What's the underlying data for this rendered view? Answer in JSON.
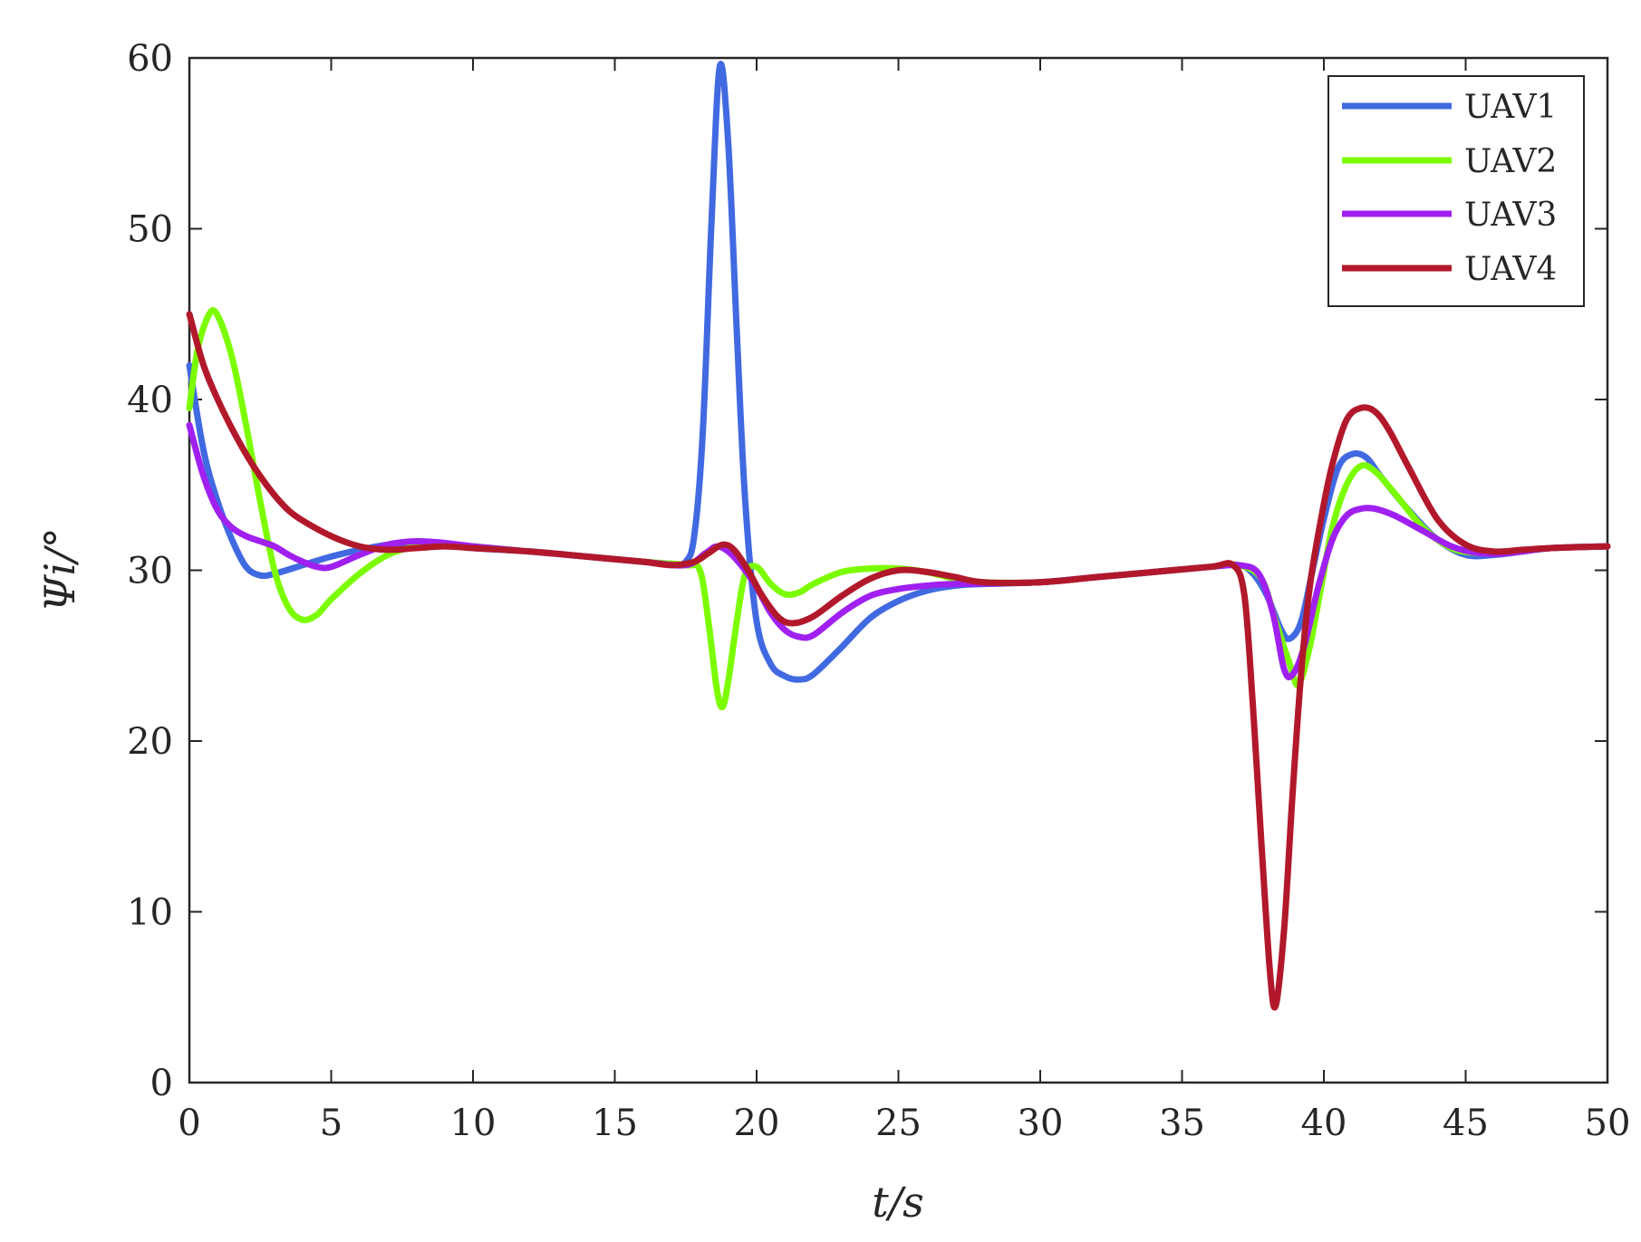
{
  "chart_data": {
    "type": "line",
    "title": "",
    "xlabel": "t/s",
    "ylabel": "Ψi/°",
    "xlim": [
      0,
      50
    ],
    "ylim": [
      0,
      60
    ],
    "xticks": [
      "0",
      "5",
      "10",
      "15",
      "20",
      "25",
      "30",
      "35",
      "40",
      "45",
      "50"
    ],
    "yticks": [
      "0",
      "10",
      "20",
      "30",
      "40",
      "50",
      "60"
    ],
    "grid": false,
    "legend_position": "top-right",
    "series": [
      {
        "name": "UAV1",
        "color": "#4169E1",
        "points": [
          [
            0,
            42
          ],
          [
            0.5,
            37
          ],
          [
            1,
            34
          ],
          [
            1.5,
            31.8
          ],
          [
            2,
            30.2
          ],
          [
            2.5,
            29.7
          ],
          [
            3,
            29.8
          ],
          [
            4,
            30.3
          ],
          [
            5,
            30.8
          ],
          [
            6,
            31.2
          ],
          [
            7,
            31.5
          ],
          [
            8,
            31.6
          ],
          [
            9,
            31.5
          ],
          [
            10,
            31.3
          ],
          [
            12,
            31.1
          ],
          [
            14,
            30.8
          ],
          [
            16,
            30.5
          ],
          [
            17,
            30.3
          ],
          [
            17.5,
            30.5
          ],
          [
            17.8,
            32
          ],
          [
            18.1,
            38
          ],
          [
            18.4,
            50
          ],
          [
            18.7,
            59.5
          ],
          [
            19,
            55
          ],
          [
            19.3,
            44
          ],
          [
            19.6,
            34
          ],
          [
            20,
            27
          ],
          [
            20.5,
            24.5
          ],
          [
            21,
            23.8
          ],
          [
            21.5,
            23.6
          ],
          [
            22,
            23.9
          ],
          [
            23,
            25.5
          ],
          [
            24,
            27.2
          ],
          [
            25,
            28.2
          ],
          [
            26,
            28.8
          ],
          [
            27,
            29.1
          ],
          [
            28,
            29.2
          ],
          [
            30,
            29.3
          ],
          [
            32,
            29.6
          ],
          [
            34,
            29.9
          ],
          [
            36,
            30.2
          ],
          [
            37,
            30.3
          ],
          [
            37.5,
            29.8
          ],
          [
            38,
            28.5
          ],
          [
            38.5,
            26.5
          ],
          [
            38.8,
            26
          ],
          [
            39.2,
            27
          ],
          [
            39.6,
            30
          ],
          [
            40,
            33
          ],
          [
            40.5,
            36
          ],
          [
            41,
            36.8
          ],
          [
            41.5,
            36.6
          ],
          [
            42,
            35.5
          ],
          [
            43,
            33.5
          ],
          [
            44,
            31.8
          ],
          [
            45,
            30.9
          ],
          [
            46,
            30.9
          ],
          [
            47,
            31.1
          ],
          [
            48,
            31.3
          ],
          [
            50,
            31.4
          ]
        ]
      },
      {
        "name": "UAV2",
        "color": "#7CFC00",
        "points": [
          [
            0,
            39.5
          ],
          [
            0.3,
            43
          ],
          [
            0.7,
            45
          ],
          [
            1,
            44.9
          ],
          [
            1.5,
            42.5
          ],
          [
            2,
            38.5
          ],
          [
            2.5,
            34
          ],
          [
            3,
            30
          ],
          [
            3.5,
            27.8
          ],
          [
            4,
            27.1
          ],
          [
            4.5,
            27.4
          ],
          [
            5,
            28.3
          ],
          [
            6,
            29.8
          ],
          [
            7,
            30.9
          ],
          [
            8,
            31.4
          ],
          [
            9,
            31.5
          ],
          [
            10,
            31.4
          ],
          [
            12,
            31.1
          ],
          [
            14,
            30.8
          ],
          [
            16,
            30.5
          ],
          [
            17.5,
            30.3
          ],
          [
            18,
            30
          ],
          [
            18.3,
            27
          ],
          [
            18.6,
            23
          ],
          [
            18.8,
            22
          ],
          [
            19,
            23.5
          ],
          [
            19.3,
            27
          ],
          [
            19.6,
            29.8
          ],
          [
            20,
            30.2
          ],
          [
            20.5,
            29.2
          ],
          [
            21,
            28.6
          ],
          [
            21.5,
            28.7
          ],
          [
            22,
            29.2
          ],
          [
            23,
            29.9
          ],
          [
            24,
            30.1
          ],
          [
            25,
            30.1
          ],
          [
            26,
            29.9
          ],
          [
            27,
            29.5
          ],
          [
            28,
            29.3
          ],
          [
            30,
            29.3
          ],
          [
            32,
            29.6
          ],
          [
            34,
            29.9
          ],
          [
            36,
            30.2
          ],
          [
            37,
            30.3
          ],
          [
            37.8,
            29.5
          ],
          [
            38.3,
            27
          ],
          [
            38.8,
            24.5
          ],
          [
            39.1,
            23.3
          ],
          [
            39.5,
            25.5
          ],
          [
            39.9,
            29
          ],
          [
            40.3,
            32.5
          ],
          [
            40.8,
            35
          ],
          [
            41.3,
            36.1
          ],
          [
            41.8,
            35.8
          ],
          [
            42.5,
            34.5
          ],
          [
            43.5,
            32.5
          ],
          [
            44.5,
            31.3
          ],
          [
            45.5,
            31
          ],
          [
            46.5,
            31
          ],
          [
            48,
            31.3
          ],
          [
            50,
            31.4
          ]
        ]
      },
      {
        "name": "UAV3",
        "color": "#A020F0",
        "points": [
          [
            0,
            38.5
          ],
          [
            0.5,
            35.5
          ],
          [
            1,
            33.5
          ],
          [
            1.5,
            32.5
          ],
          [
            2,
            32
          ],
          [
            2.5,
            31.7
          ],
          [
            3,
            31.4
          ],
          [
            3.5,
            30.9
          ],
          [
            4,
            30.5
          ],
          [
            4.5,
            30.2
          ],
          [
            5,
            30.2
          ],
          [
            6,
            30.9
          ],
          [
            7,
            31.5
          ],
          [
            8,
            31.7
          ],
          [
            9,
            31.6
          ],
          [
            10,
            31.4
          ],
          [
            12,
            31.1
          ],
          [
            14,
            30.8
          ],
          [
            16,
            30.5
          ],
          [
            17.5,
            30.3
          ],
          [
            18.2,
            31
          ],
          [
            18.6,
            31.4
          ],
          [
            19,
            31.1
          ],
          [
            19.5,
            30.2
          ],
          [
            20,
            29
          ],
          [
            20.5,
            27.5
          ],
          [
            21,
            26.5
          ],
          [
            21.5,
            26.1
          ],
          [
            22,
            26.2
          ],
          [
            23,
            27.5
          ],
          [
            24,
            28.5
          ],
          [
            25,
            28.9
          ],
          [
            26,
            29.1
          ],
          [
            27,
            29.2
          ],
          [
            30,
            29.3
          ],
          [
            32,
            29.6
          ],
          [
            34,
            29.9
          ],
          [
            36,
            30.2
          ],
          [
            37,
            30.3
          ],
          [
            37.7,
            29.8
          ],
          [
            38.2,
            27.5
          ],
          [
            38.6,
            24.2
          ],
          [
            38.9,
            23.9
          ],
          [
            39.3,
            25.5
          ],
          [
            39.8,
            29
          ],
          [
            40.3,
            31.8
          ],
          [
            40.8,
            33.2
          ],
          [
            41.3,
            33.6
          ],
          [
            41.8,
            33.6
          ],
          [
            42.5,
            33.2
          ],
          [
            43.5,
            32.3
          ],
          [
            44.5,
            31.4
          ],
          [
            45.5,
            31
          ],
          [
            46.5,
            31
          ],
          [
            48,
            31.3
          ],
          [
            50,
            31.4
          ]
        ]
      },
      {
        "name": "UAV4",
        "color": "#B2182B",
        "points": [
          [
            0,
            45
          ],
          [
            0.5,
            42
          ],
          [
            1,
            40
          ],
          [
            1.5,
            38.3
          ],
          [
            2,
            36.8
          ],
          [
            2.5,
            35.5
          ],
          [
            3,
            34.4
          ],
          [
            3.5,
            33.5
          ],
          [
            4,
            32.9
          ],
          [
            5,
            32
          ],
          [
            6,
            31.4
          ],
          [
            7,
            31.2
          ],
          [
            8,
            31.3
          ],
          [
            9,
            31.4
          ],
          [
            10,
            31.3
          ],
          [
            12,
            31.1
          ],
          [
            14,
            30.8
          ],
          [
            16,
            30.5
          ],
          [
            17,
            30.3
          ],
          [
            17.8,
            30.5
          ],
          [
            18.3,
            31
          ],
          [
            18.8,
            31.5
          ],
          [
            19.2,
            31.2
          ],
          [
            19.7,
            30
          ],
          [
            20.2,
            28.5
          ],
          [
            20.8,
            27.2
          ],
          [
            21.3,
            26.9
          ],
          [
            22,
            27.3
          ],
          [
            23,
            28.5
          ],
          [
            24,
            29.5
          ],
          [
            25,
            30
          ],
          [
            26,
            29.9
          ],
          [
            27,
            29.6
          ],
          [
            28,
            29.3
          ],
          [
            30,
            29.3
          ],
          [
            32,
            29.6
          ],
          [
            34,
            29.9
          ],
          [
            36,
            30.2
          ],
          [
            36.8,
            30.3
          ],
          [
            37.2,
            28.5
          ],
          [
            37.5,
            22
          ],
          [
            37.8,
            14
          ],
          [
            38.1,
            6.5
          ],
          [
            38.3,
            4.5
          ],
          [
            38.6,
            9
          ],
          [
            38.9,
            17
          ],
          [
            39.2,
            24
          ],
          [
            39.5,
            29
          ],
          [
            39.9,
            33
          ],
          [
            40.3,
            36.2
          ],
          [
            40.8,
            38.8
          ],
          [
            41.3,
            39.5
          ],
          [
            41.8,
            39.3
          ],
          [
            42.3,
            38.2
          ],
          [
            43,
            36
          ],
          [
            44,
            33
          ],
          [
            45,
            31.5
          ],
          [
            46,
            31.1
          ],
          [
            47,
            31.2
          ],
          [
            48,
            31.3
          ],
          [
            50,
            31.4
          ]
        ]
      }
    ]
  }
}
